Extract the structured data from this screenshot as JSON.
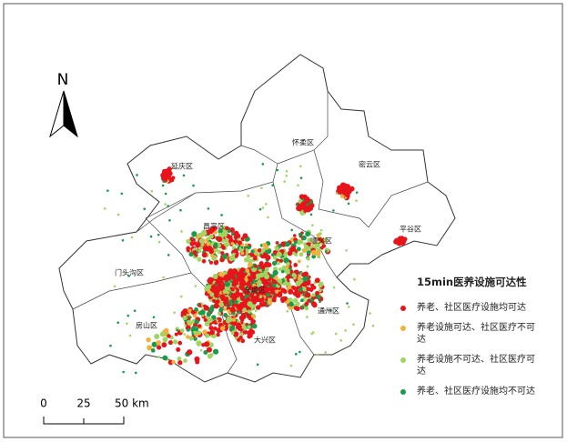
{
  "north": "N",
  "districts": [
    "延庆区",
    "怀柔区",
    "密云区",
    "昌平区",
    "平谷区",
    "顺义区",
    "门头沟区",
    "东城区",
    "通州区",
    "房山区",
    "大兴区"
  ],
  "scale": [
    "0",
    "25",
    "50 km"
  ],
  "legend": {
    "title": "15min医养设施可达性",
    "items": [
      {
        "label": "养老、社区医疗设施均可达",
        "color": "#e8141c"
      },
      {
        "label": "养老设施可达、社区医疗不可达",
        "color": "#f2b13a"
      },
      {
        "label": "养老设施不可达、社区医疗可达",
        "color": "#9fd662"
      },
      {
        "label": "养老、社区医疗设施均不可达",
        "color": "#1a9a4a"
      }
    ]
  }
}
